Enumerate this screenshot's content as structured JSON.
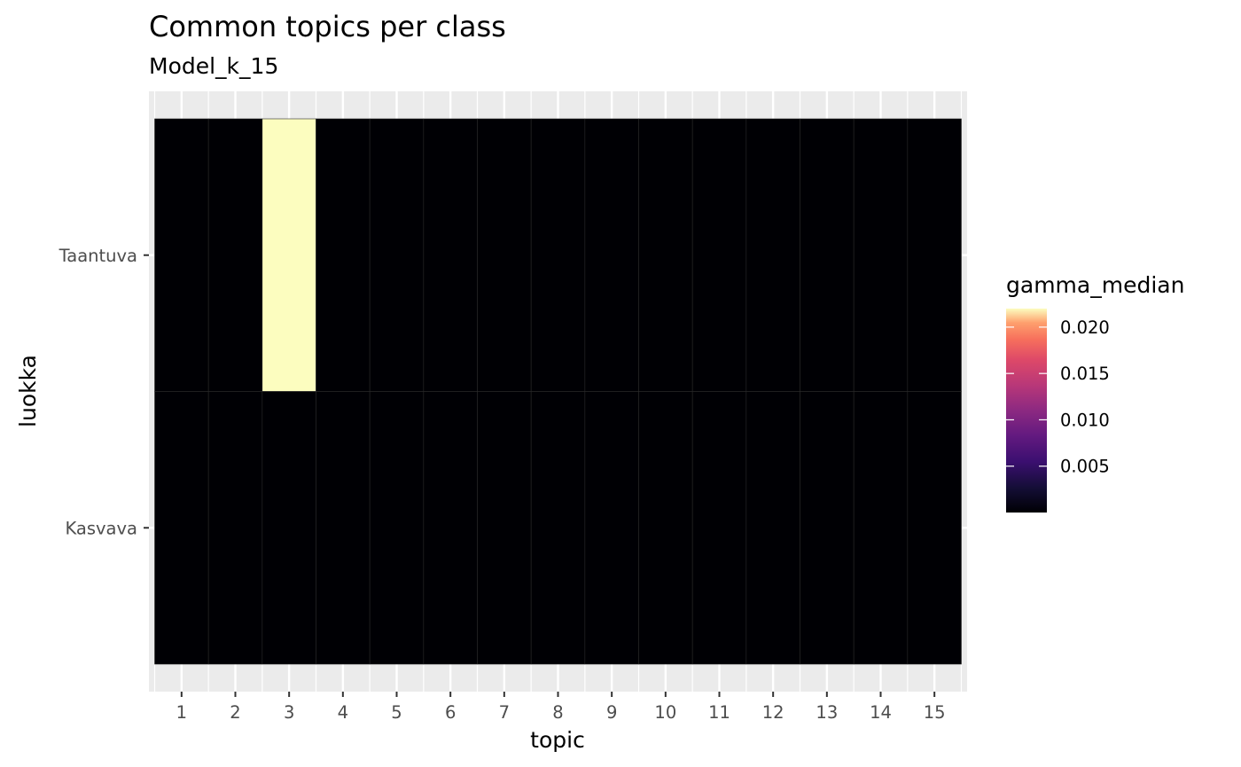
{
  "chart_data": {
    "type": "heatmap",
    "title": "Common topics per class",
    "subtitle": "Model_k_15",
    "xlabel": "topic",
    "ylabel": "luokka",
    "x_categories": [
      "1",
      "2",
      "3",
      "4",
      "5",
      "6",
      "7",
      "8",
      "9",
      "10",
      "11",
      "12",
      "13",
      "14",
      "15"
    ],
    "y_categories": [
      "Kasvava",
      "Taantuva"
    ],
    "cells": [
      {
        "y": "Taantuva",
        "values": [
          0,
          0,
          0.022,
          0,
          0,
          0,
          0,
          0,
          0,
          0,
          0,
          0,
          0,
          0,
          0
        ]
      },
      {
        "y": "Kasvava",
        "values": [
          0,
          0,
          0,
          0,
          0,
          0,
          0,
          0,
          0,
          0,
          0,
          0,
          0,
          0,
          0
        ]
      }
    ],
    "legend": {
      "title": "gamma_median",
      "breaks": [
        0.005,
        0.01,
        0.015,
        0.02
      ],
      "break_labels": [
        "0.005",
        "0.010",
        "0.015",
        "0.020"
      ],
      "range": [
        0,
        0.022
      ],
      "placement": "right"
    },
    "colormap": "magma",
    "panel_background": "#ebebeb",
    "grid": true
  }
}
